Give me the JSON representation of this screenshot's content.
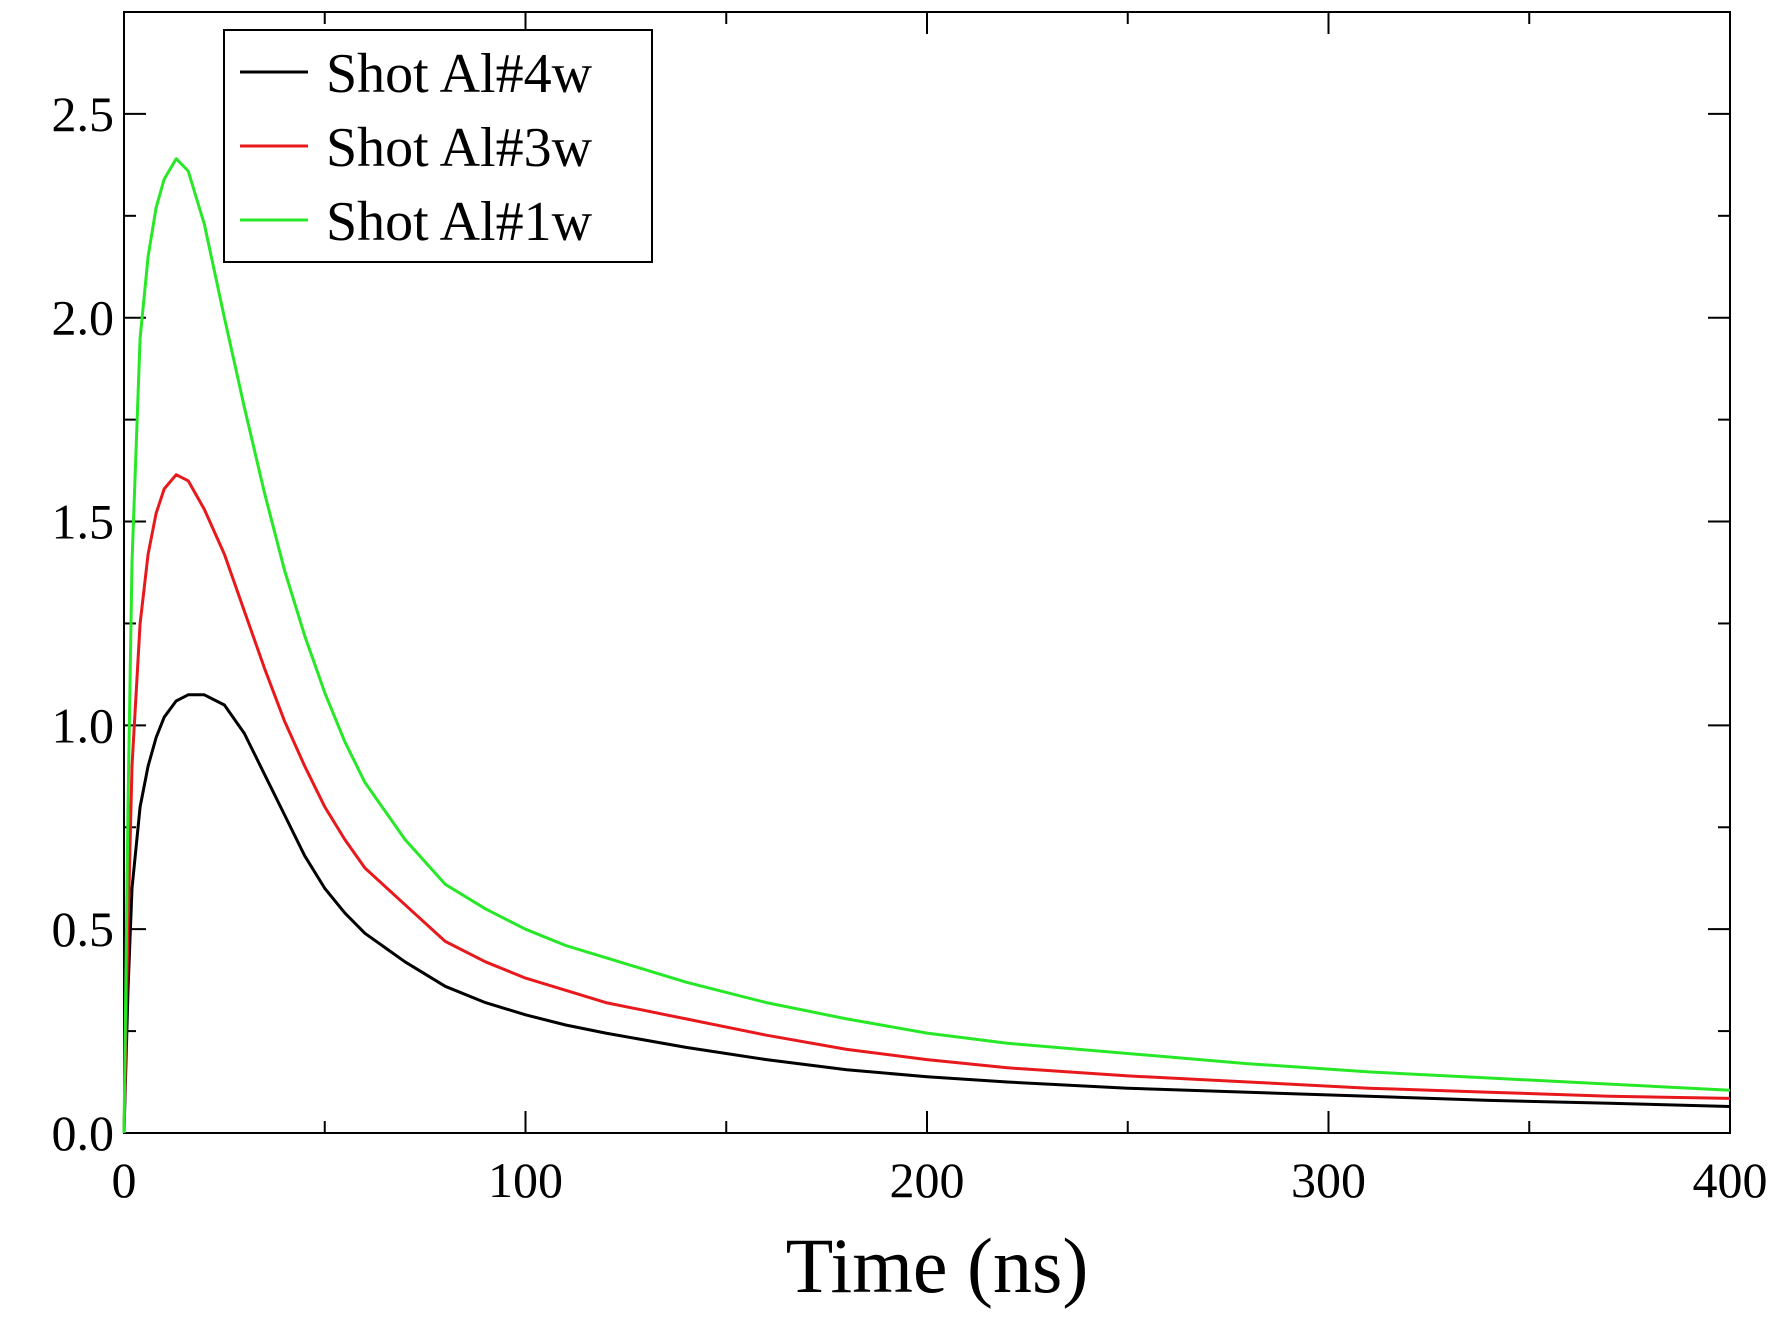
{
  "chart_data": {
    "type": "line",
    "title": "",
    "xlabel": "Time (ns)",
    "ylabel": "",
    "xlim": [
      0,
      400
    ],
    "ylim": [
      0,
      2.75
    ],
    "x_ticks": [
      0,
      100,
      200,
      300,
      400
    ],
    "x_tick_labels": [
      "0",
      "100",
      "200",
      "300",
      "400"
    ],
    "y_ticks": [
      0,
      0.5,
      1.0,
      1.5,
      2.0,
      2.5
    ],
    "y_tick_labels": [
      "0.0",
      "0.5",
      "1.0",
      "1.5",
      "2.0",
      "2.5"
    ],
    "grid": false,
    "legend_position": "top-left",
    "series": [
      {
        "name": "Shot Al#4w",
        "color": "#000000",
        "x": [
          0,
          1,
          2,
          4,
          6,
          8,
          10,
          13,
          16,
          20,
          25,
          30,
          35,
          40,
          45,
          50,
          55,
          60,
          70,
          80,
          90,
          100,
          110,
          120,
          140,
          160,
          180,
          200,
          220,
          250,
          280,
          310,
          340,
          370,
          400
        ],
        "y": [
          0.0,
          0.35,
          0.6,
          0.8,
          0.9,
          0.97,
          1.02,
          1.06,
          1.075,
          1.075,
          1.05,
          0.98,
          0.88,
          0.78,
          0.68,
          0.6,
          0.54,
          0.49,
          0.42,
          0.36,
          0.32,
          0.29,
          0.265,
          0.245,
          0.21,
          0.18,
          0.155,
          0.138,
          0.125,
          0.11,
          0.1,
          0.09,
          0.08,
          0.073,
          0.065
        ]
      },
      {
        "name": "Shot Al#3w",
        "color": "#e8191c",
        "x": [
          0,
          1,
          2,
          4,
          6,
          8,
          10,
          13,
          16,
          20,
          25,
          30,
          35,
          40,
          45,
          50,
          55,
          60,
          70,
          80,
          90,
          100,
          110,
          120,
          140,
          160,
          180,
          200,
          220,
          250,
          280,
          310,
          340,
          370,
          400
        ],
        "y": [
          0.0,
          0.5,
          0.9,
          1.25,
          1.42,
          1.52,
          1.58,
          1.615,
          1.6,
          1.53,
          1.42,
          1.28,
          1.14,
          1.01,
          0.9,
          0.8,
          0.72,
          0.65,
          0.56,
          0.47,
          0.42,
          0.38,
          0.35,
          0.32,
          0.28,
          0.24,
          0.205,
          0.18,
          0.16,
          0.14,
          0.125,
          0.11,
          0.1,
          0.09,
          0.085
        ]
      },
      {
        "name": "Shot Al#1w",
        "color": "#27e827",
        "x": [
          0,
          1,
          2,
          4,
          6,
          8,
          10,
          13,
          16,
          20,
          25,
          30,
          35,
          40,
          45,
          50,
          55,
          60,
          70,
          80,
          90,
          100,
          110,
          120,
          140,
          160,
          180,
          200,
          220,
          250,
          280,
          310,
          340,
          370,
          400
        ],
        "y": [
          0.0,
          0.8,
          1.4,
          1.95,
          2.15,
          2.27,
          2.34,
          2.39,
          2.36,
          2.23,
          2.0,
          1.78,
          1.57,
          1.38,
          1.22,
          1.08,
          0.96,
          0.86,
          0.72,
          0.61,
          0.55,
          0.5,
          0.46,
          0.43,
          0.37,
          0.32,
          0.28,
          0.245,
          0.22,
          0.195,
          0.17,
          0.15,
          0.135,
          0.12,
          0.105
        ]
      }
    ]
  }
}
